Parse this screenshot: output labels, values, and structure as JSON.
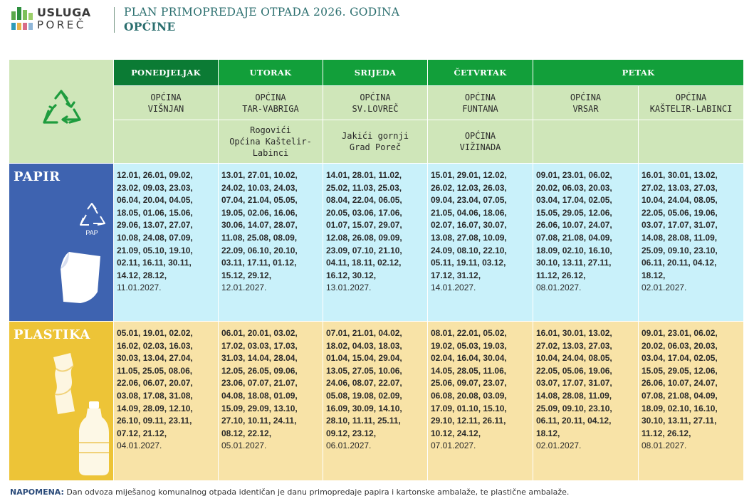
{
  "header": {
    "logo_line1": "USLUGA",
    "logo_line2": "POREČ",
    "title": "PLAN PRIMOPREDAJE OTPADA 2026. GODINA",
    "subtitle": "OPĆINE"
  },
  "colors": {
    "day_header": "#129f3a",
    "municipality_bg": "#cfe6b9",
    "papir_label_bg": "#3e63b0",
    "papir_cells_bg": "#c9f1fa",
    "plastika_label_bg": "#edc437",
    "plastika_cells_bg": "#f8e3a7"
  },
  "days": {
    "mon": "PONEDJELJAK",
    "tue": "UTORAK",
    "wed": "SRIJEDA",
    "thu": "ČETVRTAK",
    "fri": "PETAK"
  },
  "municipalities_row1": [
    "OPĆINA\nVIŠNJAN",
    "OPĆINA\nTAR-VABRIGA",
    "OPĆINA\nSV.LOVREČ",
    "OPĆINA\nFUNTANA",
    "OPĆINA\nVRSAR",
    "OPĆINA\nKAŠTELIR-LABINCI"
  ],
  "municipalities_row2": [
    "",
    "Rogovići\nOpćina Kaštelir-\nLabinci",
    "Jakići gornji\nGrad Poreč",
    "OPĆINA\nVIŽINADA",
    "",
    ""
  ],
  "categories": {
    "papir": "PAPIR",
    "papir_icon_label": "PAP",
    "plastika": "PLASTIKA"
  },
  "papir_dates": [
    {
      "bold": "12.01, 26.01, 09.02,\n23.02, 09.03, 23.03,\n06.04, 20.04, 04.05,\n18.05, 01.06, 15.06,\n29.06, 13.07, 27.07,\n10.08, 24.08, 07.09,\n21.09, 05.10, 19.10,\n02.11, 16.11, 30.11,\n14.12, 28.12,",
      "last": "11.01.2027."
    },
    {
      "bold": "13.01, 27.01, 10.02,\n24.02, 10.03, 24.03,\n07.04, 21.04, 05.05,\n19.05, 02.06, 16.06,\n30.06, 14.07, 28.07,\n11.08, 25.08, 08.09,\n22.09, 06.10, 20.10,\n03.11, 17.11, 01.12,\n15.12, 29.12,",
      "last": "12.01.2027."
    },
    {
      "bold": "14.01, 28.01, 11.02,\n25.02, 11.03, 25.03,\n08.04, 22.04, 06.05,\n20.05, 03.06, 17.06,\n01.07, 15.07, 29.07,\n12.08, 26.08, 09.09,\n23.09, 07.10, 21.10,\n04.11, 18.11, 02.12,\n16.12, 30.12,",
      "last": "13.01.2027."
    },
    {
      "bold": "15.01, 29.01, 12.02,\n26.02, 12.03, 26.03,\n09.04, 23.04, 07.05,\n21.05, 04.06, 18.06,\n02.07, 16.07, 30.07,\n13.08, 27.08, 10.09,\n24.09, 08.10, 22.10,\n05.11, 19.11, 03.12,\n17.12, 31.12,",
      "last": "14.01.2027."
    },
    {
      "bold": "09.01, 23.01, 06.02,\n20.02, 06.03, 20.03,\n03.04, 17.04, 02.05,\n15.05, 29.05, 12.06,\n26.06, 10.07, 24.07,\n07.08, 21.08, 04.09,\n18.09, 02.10, 16.10,\n30.10, 13.11, 27.11,\n11.12, 26.12,",
      "last": "08.01.2027."
    },
    {
      "bold": "16.01, 30.01, 13.02,\n27.02, 13.03, 27.03,\n10.04, 24.04, 08.05,\n22.05, 05.06, 19.06,\n03.07, 17.07, 31.07,\n14.08, 28.08, 11.09,\n25.09, 09.10, 23.10,\n06.11, 20.11, 04.12,\n18.12,",
      "last": "02.01.2027."
    }
  ],
  "plastika_dates": [
    {
      "bold": "05.01, 19.01, 02.02,\n16.02, 02.03, 16.03,\n30.03, 13.04, 27.04,\n11.05, 25.05, 08.06,\n22.06, 06.07, 20.07,\n03.08, 17.08, 31.08,\n14.09, 28.09, 12.10,\n26.10, 09.11, 23.11,\n07.12, 21.12,",
      "last": "04.01.2027."
    },
    {
      "bold": "06.01, 20.01, 03.02,\n17.02, 03.03, 17.03,\n31.03, 14.04, 28.04,\n12.05, 26.05, 09.06,\n23.06, 07.07, 21.07,\n04.08, 18.08, 01.09,\n15.09, 29.09, 13.10,\n27.10, 10.11, 24.11,\n08.12, 22.12,",
      "last": "05.01.2027."
    },
    {
      "bold": "07.01, 21.01, 04.02,\n18.02, 04.03, 18.03,\n01.04, 15.04, 29.04,\n13.05, 27.05, 10.06,\n24.06, 08.07, 22.07,\n05.08, 19.08, 02.09,\n16.09, 30.09, 14.10,\n28.10, 11.11, 25.11,\n09.12, 23.12,",
      "last": "06.01.2027."
    },
    {
      "bold": "08.01, 22.01, 05.02,\n19.02, 05.03, 19.03,\n02.04, 16.04, 30.04,\n14.05, 28.05, 11.06,\n25.06, 09.07, 23.07,\n06.08, 20.08, 03.09,\n17.09, 01.10, 15.10,\n29.10, 12.11, 26.11,\n10.12, 24.12,",
      "last": "07.01.2027."
    },
    {
      "bold": "16.01, 30.01, 13.02,\n27.02, 13.03, 27.03,\n10.04, 24.04, 08.05,\n22.05, 05.06, 19.06,\n03.07, 17.07, 31.07,\n14.08, 28.08, 11.09,\n25.09, 09.10, 23.10,\n06.11, 20.11, 04.12,\n18.12,",
      "last": "02.01.2027."
    },
    {
      "bold": "09.01, 23.01, 06.02,\n20.02, 06.03, 20.03,\n03.04, 17.04, 02.05,\n15.05, 29.05, 12.06,\n26.06, 10.07, 24.07,\n07.08, 21.08, 04.09,\n18.09, 02.10, 16.10,\n30.10, 13.11, 27.11,\n11.12, 26.12,",
      "last": "08.01.2027."
    }
  ],
  "note": {
    "label": "NAPOMENA:",
    "text": " Dan odvoza miješanog komunalnog otpada identičan je danu primopredaje papira i kartonske ambalaže, te plastične ambalaže."
  }
}
